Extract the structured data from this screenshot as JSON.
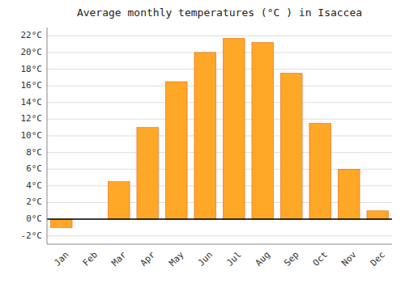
{
  "chart_data": {
    "type": "bar",
    "title": "Average monthly temperatures (°C ) in Isaccea",
    "categories": [
      "Jan",
      "Feb",
      "Mar",
      "Apr",
      "May",
      "Jun",
      "Jul",
      "Aug",
      "Sep",
      "Oct",
      "Nov",
      "Dec"
    ],
    "values": [
      -1.0,
      0.0,
      4.5,
      11.0,
      16.5,
      20.0,
      21.7,
      21.2,
      17.5,
      11.5,
      6.0,
      1.0
    ],
    "color": "#FFA726",
    "ylim": [
      -3,
      23
    ],
    "yticks": [
      {
        "value": -2,
        "label": "-2°C"
      },
      {
        "value": 0,
        "label": "0°C"
      },
      {
        "value": 2,
        "label": "2°C"
      },
      {
        "value": 4,
        "label": "4°C"
      },
      {
        "value": 6,
        "label": "6°C"
      },
      {
        "value": 8,
        "label": "8°C"
      },
      {
        "value": 10,
        "label": "10°C"
      },
      {
        "value": 12,
        "label": "12°C"
      },
      {
        "value": 14,
        "label": "14°C"
      },
      {
        "value": 16,
        "label": "16°C"
      },
      {
        "value": 18,
        "label": "18°C"
      },
      {
        "value": 20,
        "label": "20°C"
      },
      {
        "value": 22,
        "label": "22°C"
      }
    ],
    "grid": true
  }
}
